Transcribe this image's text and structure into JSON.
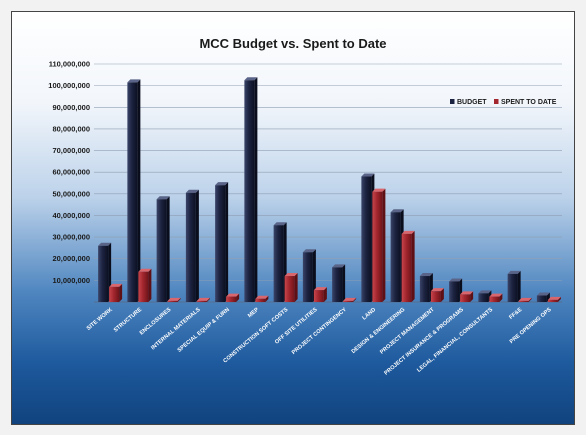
{
  "chart_data": {
    "type": "bar",
    "title": "MCC Budget vs. Spent to Date",
    "xlabel": "",
    "ylabel": "",
    "ylim": [
      0,
      110000000
    ],
    "yticks": [
      10000000,
      20000000,
      30000000,
      40000000,
      50000000,
      60000000,
      70000000,
      80000000,
      90000000,
      100000000,
      110000000
    ],
    "ytick_labels": [
      "10,000,000",
      "20,000,000",
      "30,000,000",
      "40,000,000",
      "50,000,000",
      "60,000,000",
      "70,000,000",
      "80,000,000",
      "90,000,000",
      "100,000,000",
      "110,000,000"
    ],
    "grid": true,
    "legend_position": "top-right",
    "categories": [
      "SITE WORK",
      "STRUCTURE",
      "ENCLOSURES",
      "INTERNAL MATERIALS",
      "SPECIAL EQUIP & FURN",
      "MEP",
      "CONSTRUCTION SOFT COSTS",
      "OFF SITE UTILITIES",
      "PROJECT CONTINGENCY",
      "LAND",
      "DESIGN & ENGINEERING",
      "PROJECT MANAGEMENT",
      "PROJECT INSURANCE & PROGRAMS",
      "LEGAL, FINANCIAL, CONSULTANTS",
      "FF&E",
      "PRE OPENING OPS"
    ],
    "series": [
      {
        "name": "BUDGET",
        "color": "#1c2340",
        "values": [
          26000000,
          101500000,
          47500000,
          50500000,
          54000000,
          102500000,
          35500000,
          23000000,
          16000000,
          58000000,
          41500000,
          12000000,
          9500000,
          4000000,
          13000000,
          3000000
        ]
      },
      {
        "name": "SPENT TO DATE",
        "color": "#a3262e",
        "values": [
          7000000,
          14000000,
          500000,
          500000,
          2500000,
          1500000,
          12000000,
          5500000,
          500000,
          51000000,
          31500000,
          5000000,
          3500000,
          2500000,
          500000,
          1000000
        ]
      }
    ]
  }
}
